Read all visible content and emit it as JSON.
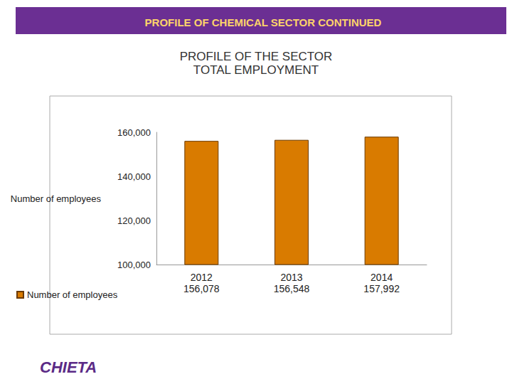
{
  "header": "PROFILE OF CHEMICAL SECTOR CONTINUED",
  "logo": "CHIETA",
  "chart_data": {
    "type": "bar",
    "title": "PROFILE OF THE SECTOR",
    "subtitle": "TOTAL EMPLOYMENT",
    "y_label": "Number of employees",
    "categories": [
      "2012",
      "2013",
      "2014"
    ],
    "series": [
      {
        "name": "Number of employees",
        "color": "#d97b00",
        "values": [
          156078,
          156548,
          157992
        ]
      }
    ],
    "value_labels": [
      "156,078",
      "156,548",
      "157,992"
    ],
    "data_labels": true,
    "ylim": [
      100000,
      160000
    ],
    "yticks": [
      {
        "value": 100000,
        "label": "100,000"
      },
      {
        "value": 120000,
        "label": "120,000"
      },
      {
        "value": 140000,
        "label": "140,000"
      },
      {
        "value": 160000,
        "label": "160,000"
      }
    ],
    "grid": false,
    "legend": "bottom-left"
  }
}
